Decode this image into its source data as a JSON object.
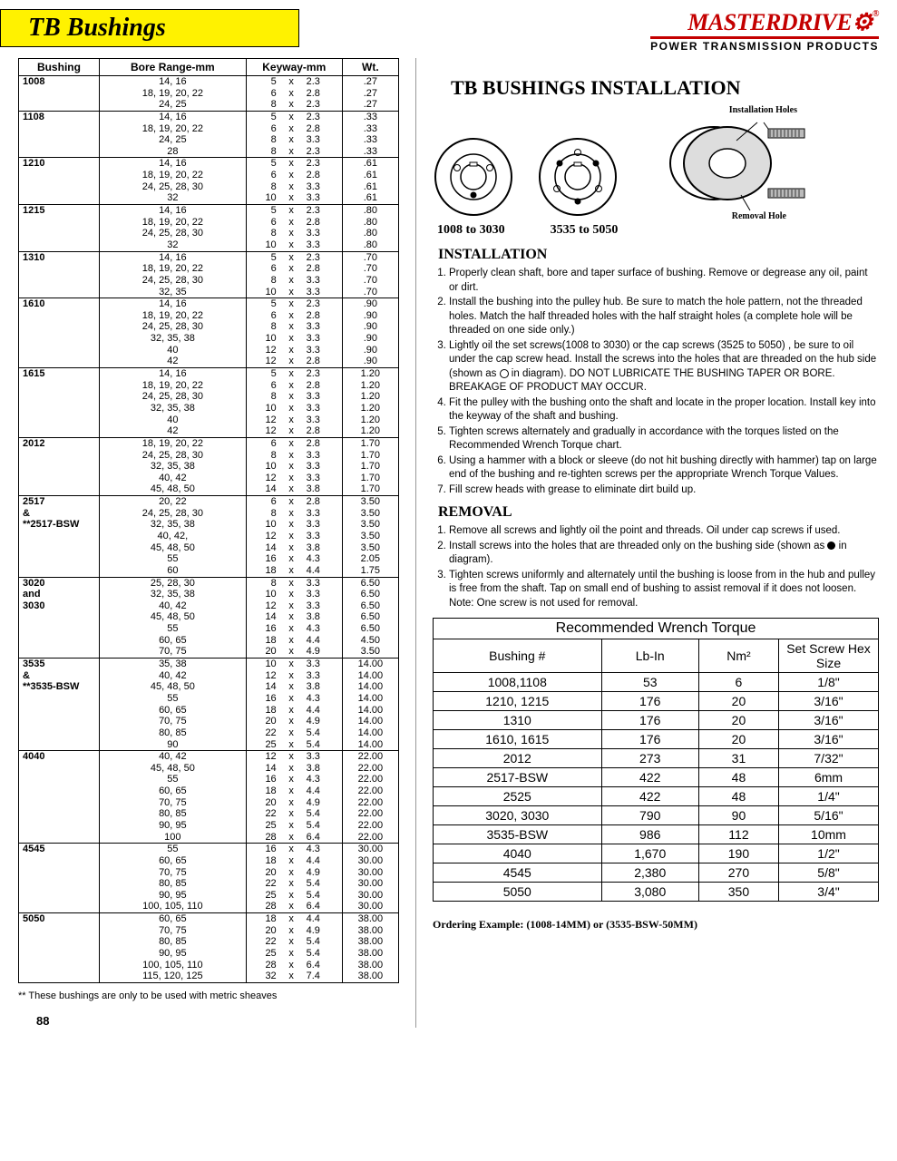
{
  "title": "TB  Bushings",
  "brand": "MASTERDRIVE",
  "brand_sub": "POWER TRANSMISSION PRODUCTS",
  "table": {
    "headers": [
      "Bushing",
      "Bore Range-mm",
      "Keyway-mm",
      "Wt."
    ],
    "groups": [
      {
        "bushing": [
          "1008"
        ],
        "rows": [
          {
            "bore": "14,  16",
            "kw": "5",
            "kh": "2.3",
            "wt": ".27"
          },
          {
            "bore": "18, 19, 20, 22",
            "kw": "6",
            "kh": "2.8",
            "wt": ".27"
          },
          {
            "bore": "24, 25",
            "kw": "8",
            "kh": "2.3",
            "wt": ".27"
          }
        ]
      },
      {
        "bushing": [
          "1108"
        ],
        "rows": [
          {
            "bore": "14, 16",
            "kw": "5",
            "kh": "2.3",
            "wt": ".33"
          },
          {
            "bore": "18, 19, 20, 22",
            "kw": "6",
            "kh": "2.8",
            "wt": ".33"
          },
          {
            "bore": "24, 25",
            "kw": "8",
            "kh": "3.3",
            "wt": ".33"
          },
          {
            "bore": "28",
            "kw": "8",
            "kh": "2.3",
            "wt": ".33"
          }
        ]
      },
      {
        "bushing": [
          "1210"
        ],
        "rows": [
          {
            "bore": "14, 16",
            "kw": "5",
            "kh": "2.3",
            "wt": ".61"
          },
          {
            "bore": "18, 19, 20, 22",
            "kw": "6",
            "kh": "2.8",
            "wt": ".61"
          },
          {
            "bore": "24, 25, 28, 30",
            "kw": "8",
            "kh": "3.3",
            "wt": ".61"
          },
          {
            "bore": "32",
            "kw": "10",
            "kh": "3.3",
            "wt": ".61"
          }
        ]
      },
      {
        "bushing": [
          "1215"
        ],
        "rows": [
          {
            "bore": "14, 16",
            "kw": "5",
            "kh": "2.3",
            "wt": ".80"
          },
          {
            "bore": "18, 19, 20, 22",
            "kw": "6",
            "kh": "2.8",
            "wt": ".80"
          },
          {
            "bore": "24, 25, 28, 30",
            "kw": "8",
            "kh": "3.3",
            "wt": ".80"
          },
          {
            "bore": "32",
            "kw": "10",
            "kh": "3.3",
            "wt": ".80"
          }
        ]
      },
      {
        "bushing": [
          "1310"
        ],
        "rows": [
          {
            "bore": "14, 16",
            "kw": "5",
            "kh": "2.3",
            "wt": ".70"
          },
          {
            "bore": "18, 19, 20, 22",
            "kw": "6",
            "kh": "2.8",
            "wt": ".70"
          },
          {
            "bore": "24, 25, 28, 30",
            "kw": "8",
            "kh": "3.3",
            "wt": ".70"
          },
          {
            "bore": "32, 35",
            "kw": "10",
            "kh": "3.3",
            "wt": ".70"
          }
        ]
      },
      {
        "bushing": [
          "1610"
        ],
        "rows": [
          {
            "bore": "14, 16",
            "kw": "5",
            "kh": "2.3",
            "wt": ".90"
          },
          {
            "bore": "18, 19, 20, 22",
            "kw": "6",
            "kh": "2.8",
            "wt": ".90"
          },
          {
            "bore": "24, 25, 28, 30",
            "kw": "8",
            "kh": "3.3",
            "wt": ".90"
          },
          {
            "bore": "32, 35, 38",
            "kw": "10",
            "kh": "3.3",
            "wt": ".90"
          },
          {
            "bore": "40",
            "kw": "12",
            "kh": "3.3",
            "wt": ".90"
          },
          {
            "bore": "42",
            "kw": "12",
            "kh": "2.8",
            "wt": ".90"
          }
        ]
      },
      {
        "bushing": [
          "1615"
        ],
        "rows": [
          {
            "bore": "14, 16",
            "kw": "5",
            "kh": "2.3",
            "wt": "1.20"
          },
          {
            "bore": "18, 19, 20, 22",
            "kw": "6",
            "kh": "2.8",
            "wt": "1.20"
          },
          {
            "bore": "24, 25, 28, 30",
            "kw": "8",
            "kh": "3.3",
            "wt": "1.20"
          },
          {
            "bore": "32, 35, 38",
            "kw": "10",
            "kh": "3.3",
            "wt": "1.20"
          },
          {
            "bore": "40",
            "kw": "12",
            "kh": "3.3",
            "wt": "1.20"
          },
          {
            "bore": "42",
            "kw": "12",
            "kh": "2.8",
            "wt": "1.20"
          }
        ]
      },
      {
        "bushing": [
          "2012"
        ],
        "rows": [
          {
            "bore": "18, 19, 20, 22",
            "kw": "6",
            "kh": "2.8",
            "wt": "1.70"
          },
          {
            "bore": "24, 25, 28, 30",
            "kw": "8",
            "kh": "3.3",
            "wt": "1.70"
          },
          {
            "bore": "32, 35, 38",
            "kw": "10",
            "kh": "3.3",
            "wt": "1.70"
          },
          {
            "bore": "40, 42",
            "kw": "12",
            "kh": "3.3",
            "wt": "1.70"
          },
          {
            "bore": "45, 48, 50",
            "kw": "14",
            "kh": "3.8",
            "wt": "1.70"
          }
        ]
      },
      {
        "bushing": [
          "2517",
          "&",
          "**2517-BSW"
        ],
        "rows": [
          {
            "bore": "20, 22",
            "kw": "6",
            "kh": "2.8",
            "wt": "3.50"
          },
          {
            "bore": "24, 25, 28, 30",
            "kw": "8",
            "kh": "3.3",
            "wt": "3.50"
          },
          {
            "bore": "32, 35, 38",
            "kw": "10",
            "kh": "3.3",
            "wt": "3.50"
          },
          {
            "bore": "40, 42,",
            "kw": "12",
            "kh": "3.3",
            "wt": "3.50"
          },
          {
            "bore": "45, 48, 50",
            "kw": "14",
            "kh": "3.8",
            "wt": "3.50"
          },
          {
            "bore": "55",
            "kw": "16",
            "kh": "4.3",
            "wt": "2.05"
          },
          {
            "bore": "60",
            "kw": "18",
            "kh": "4.4",
            "wt": "1.75"
          }
        ]
      },
      {
        "bushing": [
          "3020",
          "and",
          "3030"
        ],
        "rows": [
          {
            "bore": "25, 28, 30",
            "kw": "8",
            "kh": "3.3",
            "wt": "6.50"
          },
          {
            "bore": "32, 35, 38",
            "kw": "10",
            "kh": "3.3",
            "wt": "6.50"
          },
          {
            "bore": "40, 42",
            "kw": "12",
            "kh": "3.3",
            "wt": "6.50"
          },
          {
            "bore": "45, 48, 50",
            "kw": "14",
            "kh": "3.8",
            "wt": "6.50"
          },
          {
            "bore": "55",
            "kw": "16",
            "kh": "4.3",
            "wt": "6.50"
          },
          {
            "bore": "60, 65",
            "kw": "18",
            "kh": "4.4",
            "wt": "4.50"
          },
          {
            "bore": "70, 75",
            "kw": "20",
            "kh": "4.9",
            "wt": "3.50"
          }
        ]
      },
      {
        "bushing": [
          "3535",
          "&",
          "**3535-BSW"
        ],
        "rows": [
          {
            "bore": "35, 38",
            "kw": "10",
            "kh": "3.3",
            "wt": "14.00"
          },
          {
            "bore": "40, 42",
            "kw": "12",
            "kh": "3.3",
            "wt": "14.00"
          },
          {
            "bore": "45, 48, 50",
            "kw": "14",
            "kh": "3.8",
            "wt": "14.00"
          },
          {
            "bore": "55",
            "kw": "16",
            "kh": "4.3",
            "wt": "14.00"
          },
          {
            "bore": "60, 65",
            "kw": "18",
            "kh": "4.4",
            "wt": "14.00"
          },
          {
            "bore": "70, 75",
            "kw": "20",
            "kh": "4.9",
            "wt": "14.00"
          },
          {
            "bore": "80, 85",
            "kw": "22",
            "kh": "5.4",
            "wt": "14.00"
          },
          {
            "bore": "90",
            "kw": "25",
            "kh": "5.4",
            "wt": "14.00"
          }
        ]
      },
      {
        "bushing": [
          "4040"
        ],
        "rows": [
          {
            "bore": "40, 42",
            "kw": "12",
            "kh": "3.3",
            "wt": "22.00"
          },
          {
            "bore": "45, 48, 50",
            "kw": "14",
            "kh": "3.8",
            "wt": "22.00"
          },
          {
            "bore": "55",
            "kw": "16",
            "kh": "4.3",
            "wt": "22.00"
          },
          {
            "bore": "60, 65",
            "kw": "18",
            "kh": "4.4",
            "wt": "22.00"
          },
          {
            "bore": "70, 75",
            "kw": "20",
            "kh": "4.9",
            "wt": "22.00"
          },
          {
            "bore": "80, 85",
            "kw": "22",
            "kh": "5.4",
            "wt": "22.00"
          },
          {
            "bore": "90, 95",
            "kw": "25",
            "kh": "5.4",
            "wt": "22.00"
          },
          {
            "bore": "100",
            "kw": "28",
            "kh": "6.4",
            "wt": "22.00"
          }
        ]
      },
      {
        "bushing": [
          "4545"
        ],
        "rows": [
          {
            "bore": "55",
            "kw": "16",
            "kh": "4.3",
            "wt": "30.00"
          },
          {
            "bore": "60, 65",
            "kw": "18",
            "kh": "4.4",
            "wt": "30.00"
          },
          {
            "bore": "70, 75",
            "kw": "20",
            "kh": "4.9",
            "wt": "30.00"
          },
          {
            "bore": "80, 85",
            "kw": "22",
            "kh": "5.4",
            "wt": "30.00"
          },
          {
            "bore": "90, 95",
            "kw": "25",
            "kh": "5.4",
            "wt": "30.00"
          },
          {
            "bore": "100, 105, 110",
            "kw": "28",
            "kh": "6.4",
            "wt": "30.00"
          }
        ]
      },
      {
        "bushing": [
          "5050"
        ],
        "rows": [
          {
            "bore": "60, 65",
            "kw": "18",
            "kh": "4.4",
            "wt": "38.00"
          },
          {
            "bore": "70, 75",
            "kw": "20",
            "kh": "4.9",
            "wt": "38.00"
          },
          {
            "bore": "80, 85",
            "kw": "22",
            "kh": "5.4",
            "wt": "38.00"
          },
          {
            "bore": "90, 95",
            "kw": "25",
            "kh": "5.4",
            "wt": "38.00"
          },
          {
            "bore": "100, 105, 110",
            "kw": "28",
            "kh": "6.4",
            "wt": "38.00"
          },
          {
            "bore": "115, 120, 125",
            "kw": "32",
            "kh": "7.4",
            "wt": "38.00"
          }
        ]
      }
    ],
    "footnote": "**  These bushings are only to be used with metric sheaves"
  },
  "page_no": "88",
  "right": {
    "main_title": "TB BUSHINGS INSTALLATION",
    "cap1": "1008 to 3030",
    "cap2": "3535 to 5050",
    "label_install": "Installation Holes",
    "label_removal": "Removal Hole",
    "sec_install": "INSTALLATION",
    "install_steps": [
      "Properly clean shaft, bore and taper surface of bushing.  Remove or degrease any oil, paint or dirt.",
      "Install the bushing into the pulley hub.  Be sure to match the hole pattern, not the threaded holes.  Match the half threaded holes with the half straight holes (a complete  hole will be threaded on one side only.)",
      "Lightly oil the set screws(1008 to 3030) or the cap screws (3525 to 5050) , be sure to oil under the cap screw head.  Install the screws into the holes that are threaded on the hub side (shown as  __CIRC__  in diagram). DO NOT LUBRICATE THE BUSHING TAPER OR BORE.  BREAKAGE OF PRODUCT MAY OCCUR.",
      "Fit the pulley with the bushing onto the shaft and locate in the proper location.  Install key into the keyway of the shaft and bushing.",
      "Tighten screws alternately and gradually in accordance with the torques listed on the Recommended Wrench Torque chart.",
      "Using a hammer with a block or sleeve (do not hit bushing directly with hammer) tap on large end of the bushing and re-tighten screws per the appropriate Wrench Torque Values.",
      "Fill screw heads with grease to eliminate dirt build up."
    ],
    "sec_removal": "REMOVAL",
    "removal_steps": [
      "Remove all screws and lightly oil the point and threads.  Oil under cap screws if used.",
      "Install screws into the holes that are threaded only on the bushing side (shown as  __DOT__  in diagram).",
      "Tighten screws uniformly and alternately until the bushing is loose from in the hub and pulley is free from the shaft.  Tap on small end of bushing to assist removal if it does not loosen.  Note:  One screw is not used for removal."
    ],
    "torque": {
      "title": "Recommended Wrench Torque",
      "headers": [
        "Bushing #",
        "Lb-In",
        "Nm²",
        "Set Screw Hex Size"
      ],
      "rows": [
        [
          "1008,1108",
          "53",
          "6",
          "1/8\""
        ],
        [
          "1210, 1215",
          "176",
          "20",
          "3/16\""
        ],
        [
          "1310",
          "176",
          "20",
          "3/16\""
        ],
        [
          "1610, 1615",
          "176",
          "20",
          "3/16\""
        ],
        [
          "2012",
          "273",
          "31",
          "7/32\""
        ],
        [
          "2517-BSW",
          "422",
          "48",
          "6mm"
        ],
        [
          "2525",
          "422",
          "48",
          "1/4\""
        ],
        [
          "3020, 3030",
          "790",
          "90",
          "5/16\""
        ],
        [
          "3535-BSW",
          "986",
          "112",
          "10mm"
        ],
        [
          "4040",
          "1,670",
          "190",
          "1/2\""
        ],
        [
          "4545",
          "2,380",
          "270",
          "5/8\""
        ],
        [
          "5050",
          "3,080",
          "350",
          "3/4\""
        ]
      ]
    },
    "order": "Ordering Example:  (1008-14MM)  or  (3535-BSW-50MM)"
  },
  "colors": {
    "yellow": "#fff200",
    "red": "#c40000"
  }
}
